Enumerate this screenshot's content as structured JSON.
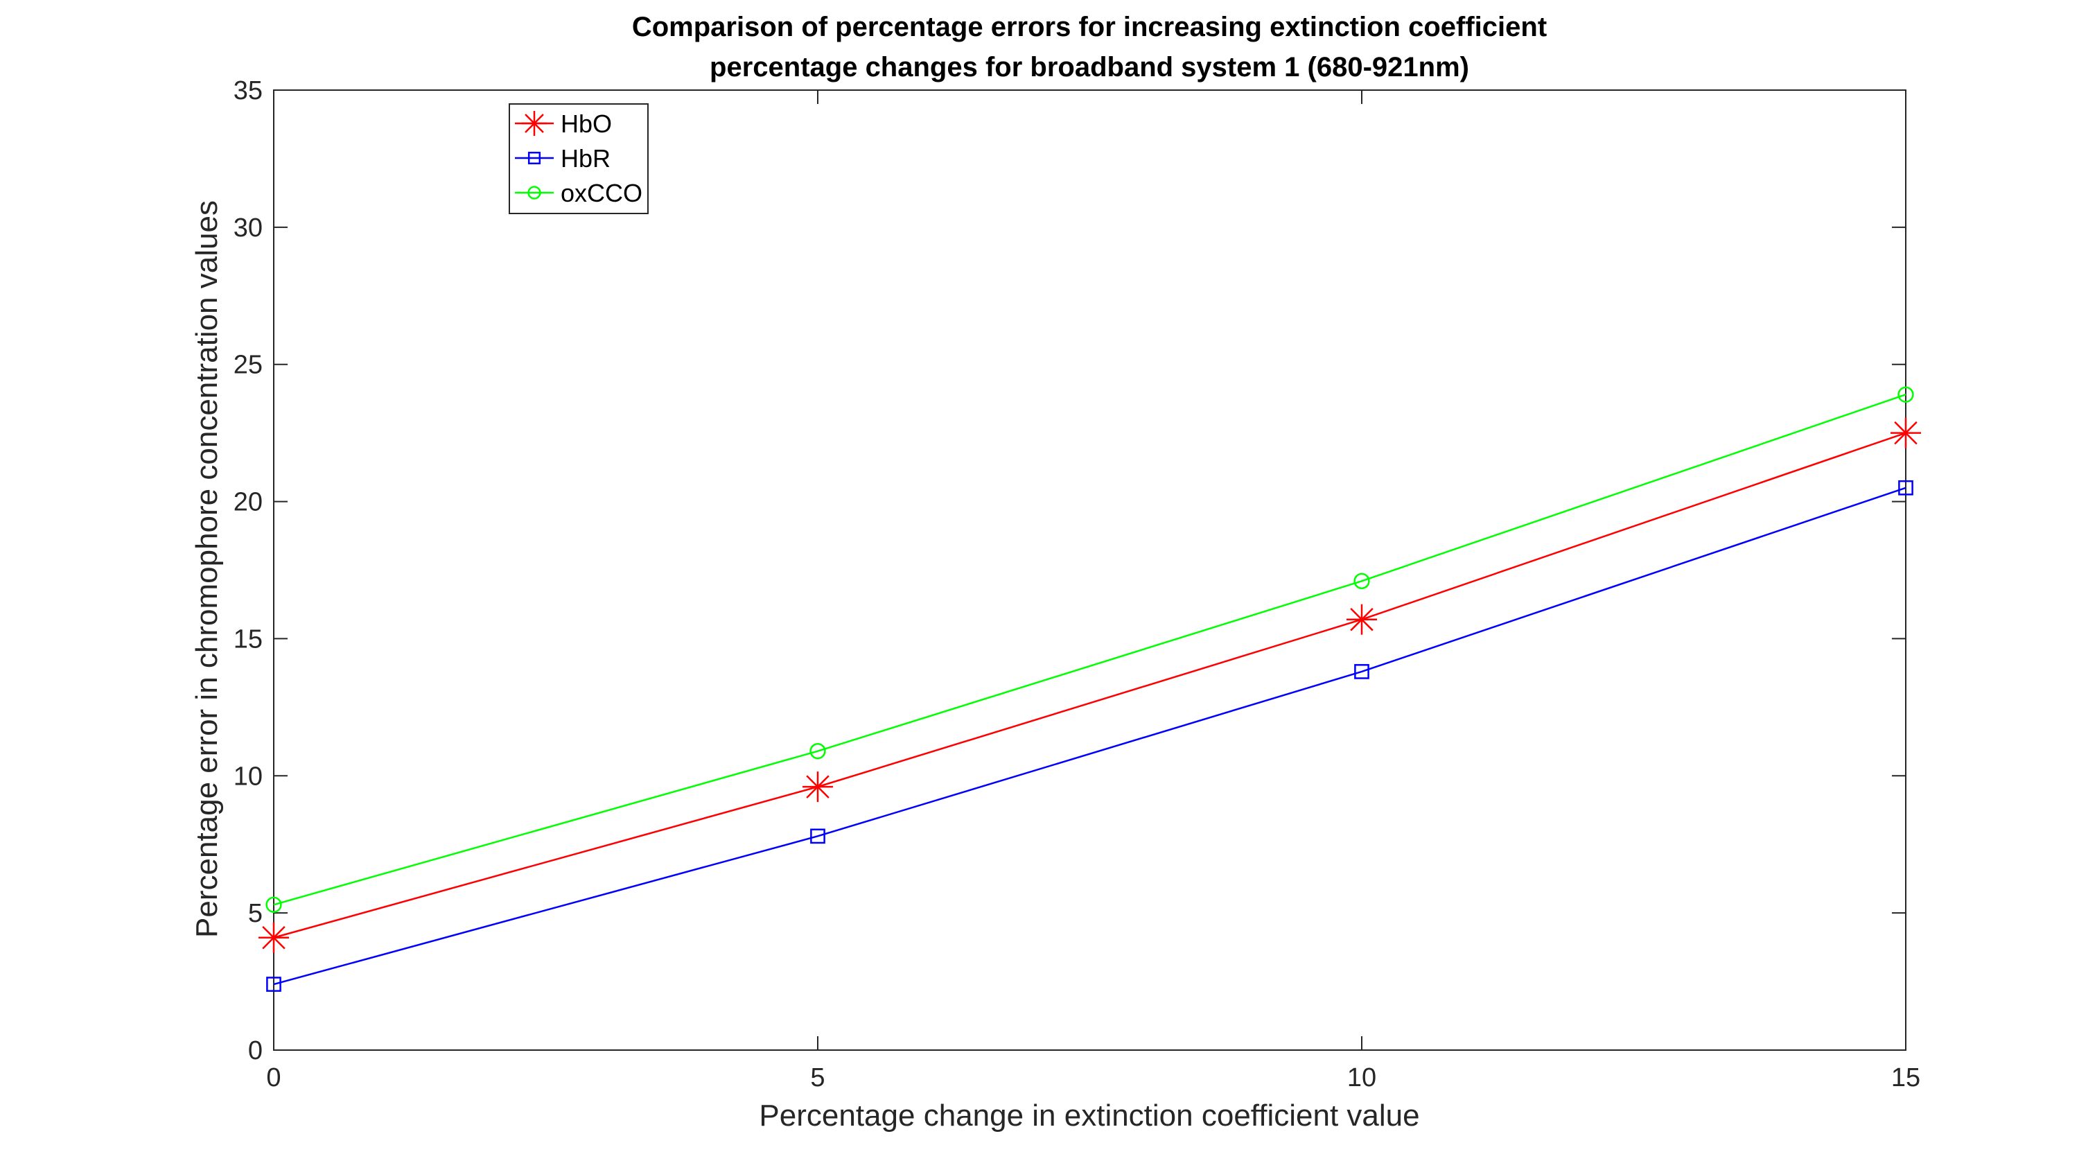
{
  "chart_data": {
    "type": "line",
    "title": [
      "Comparison of percentage errors for increasing extinction coefficient",
      "percentage changes for broadband system 1 (680-921nm)"
    ],
    "xlabel": "Percentage change in extinction coefficient value",
    "ylabel": "Percentage error in chromophore concentration values",
    "x": [
      0,
      5,
      10,
      15
    ],
    "xlim": [
      0,
      15
    ],
    "ylim": [
      0,
      35
    ],
    "xticks": [
      "0",
      "5",
      "10",
      "15"
    ],
    "yticks": [
      "0",
      "5",
      "10",
      "15",
      "20",
      "25",
      "30",
      "35"
    ],
    "grid": false,
    "legend_position": "top-left",
    "series": [
      {
        "name": "HbO",
        "color": "#ff0000",
        "marker": "asterisk",
        "values": [
          4.1,
          9.6,
          15.7,
          22.5
        ]
      },
      {
        "name": "HbR",
        "color": "#0000ff",
        "marker": "square",
        "values": [
          2.4,
          7.8,
          13.8,
          20.5
        ]
      },
      {
        "name": "oxCCO",
        "color": "#00ff00",
        "marker": "circle",
        "values": [
          5.3,
          10.9,
          17.1,
          23.9
        ]
      }
    ]
  }
}
